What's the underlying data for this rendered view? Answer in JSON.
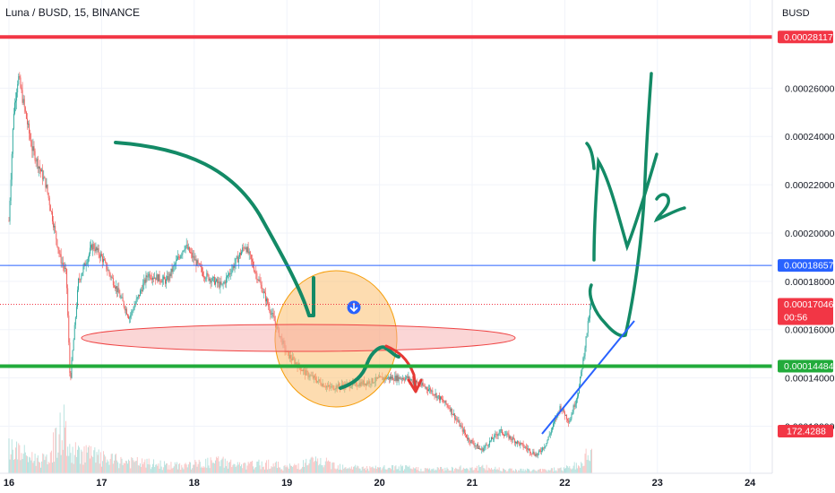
{
  "chart_data": {
    "type": "candlestick",
    "title": "Luna / BUSD, 15, BINANCE",
    "unit": "BUSD",
    "ylim": [
      0.0001005,
      0.0002965
    ],
    "y_ticks": [
      "0.00026000",
      "0.00024000",
      "0.00022000",
      "0.00020000",
      "0.00018000",
      "0.00016000",
      "0.00014000",
      "0.00012000"
    ],
    "x_ticks": [
      "16",
      "17",
      "18",
      "19",
      "20",
      "21",
      "22",
      "23",
      "24"
    ],
    "price_tags": [
      {
        "label": "0.00028117",
        "value": 0.00028117,
        "color": "#f23645",
        "style": "line"
      },
      {
        "label": "0.00018657",
        "value": 0.00018657,
        "color": "#2962ff",
        "style": "line"
      },
      {
        "label": "0.00017046",
        "value": 0.00017046,
        "color": "#f23645",
        "style": "dotted",
        "sub": "00:56"
      },
      {
        "label": "0.00014484",
        "value": 0.00014484,
        "color": "#22ab3b",
        "style": "line"
      }
    ],
    "volume_tag": {
      "label": "172.4288",
      "color": "#f23645"
    },
    "price_path": {
      "x": [
        16.0,
        16.05,
        16.1,
        16.25,
        16.4,
        16.55,
        16.62,
        16.66,
        16.75,
        16.9,
        17.0,
        17.15,
        17.3,
        17.5,
        17.7,
        17.9,
        18.1,
        18.3,
        18.55,
        18.8,
        19.0,
        19.2,
        19.45,
        19.65,
        19.85,
        20.05,
        20.3,
        20.55,
        20.75,
        20.95,
        21.1,
        21.3,
        21.5,
        21.7,
        21.8,
        21.95,
        22.05,
        22.15,
        22.2,
        22.26,
        22.3
      ],
      "y": [
        0.000205,
        0.00025,
        0.000265,
        0.000235,
        0.00022,
        0.00019,
        0.000183,
        0.000138,
        0.00018,
        0.000195,
        0.00019,
        0.000178,
        0.000165,
        0.000183,
        0.00018,
        0.000195,
        0.000183,
        0.000178,
        0.000195,
        0.00017,
        0.00015,
        0.000142,
        0.000136,
        0.000137,
        0.000138,
        0.00014,
        0.00014,
        0.000135,
        0.000128,
        0.000115,
        0.00011,
        0.000118,
        0.000113,
        0.000108,
        0.000113,
        0.000128,
        0.000122,
        0.000135,
        0.000148,
        0.000165,
        0.000175
      ]
    },
    "volume": {
      "x": [
        16.05,
        16.2,
        16.4,
        16.6,
        16.65,
        16.8,
        17.0,
        17.2,
        17.5,
        17.8,
        18.0,
        18.3,
        18.5,
        18.8,
        19.0,
        19.3,
        19.6,
        19.9,
        20.2,
        20.5,
        20.8,
        21.1,
        21.4,
        21.7,
        22.0,
        22.2,
        22.25
      ],
      "v": [
        0.5,
        0.35,
        0.25,
        1.0,
        0.4,
        0.45,
        0.3,
        0.25,
        0.2,
        0.15,
        0.18,
        0.25,
        0.15,
        0.2,
        0.12,
        0.25,
        0.15,
        0.1,
        0.12,
        0.08,
        0.1,
        0.12,
        0.08,
        0.06,
        0.1,
        0.2,
        0.5
      ]
    }
  }
}
